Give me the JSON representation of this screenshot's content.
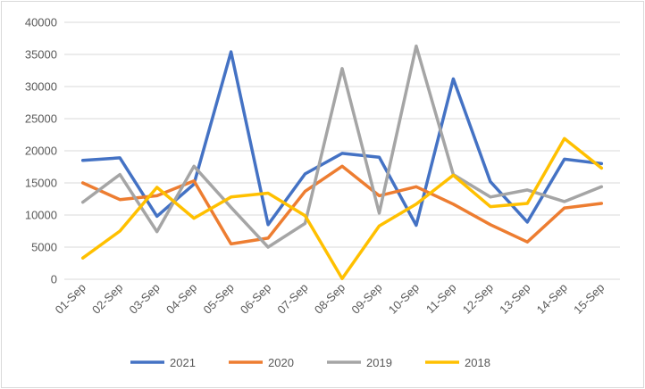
{
  "chart_data": {
    "type": "line",
    "title": "",
    "xlabel": "",
    "ylabel": "",
    "categories": [
      "01-Sep",
      "02-Sep",
      "03-Sep",
      "04-Sep",
      "05-Sep",
      "06-Sep",
      "07-Sep",
      "08-Sep",
      "09-Sep",
      "10-Sep",
      "11-Sep",
      "12-Sep",
      "13-Sep",
      "14-Sep",
      "15-Sep"
    ],
    "ylim": [
      0,
      40000
    ],
    "yticks": [
      "0",
      "5000",
      "10000",
      "15000",
      "20000",
      "25000",
      "30000",
      "35000",
      "40000"
    ],
    "grid": true,
    "legend_position": "bottom",
    "series": [
      {
        "name": "2021",
        "color": "#4472C4",
        "values": [
          18500,
          18900,
          9800,
          14800,
          35400,
          8500,
          16400,
          19600,
          19000,
          8400,
          31200,
          15200,
          8900,
          18700,
          18000
        ]
      },
      {
        "name": "2020",
        "color": "#ED7D31",
        "values": [
          15000,
          12400,
          13000,
          15300,
          5500,
          6400,
          13700,
          17600,
          13000,
          14400,
          11700,
          8500,
          5800,
          11100,
          11800
        ]
      },
      {
        "name": "2019",
        "color": "#A5A5A5",
        "values": [
          12000,
          16300,
          7400,
          17600,
          11200,
          5000,
          8700,
          32800,
          10300,
          36300,
          16300,
          12800,
          13900,
          12100,
          14400
        ]
      },
      {
        "name": "2018",
        "color": "#FFC000",
        "values": [
          3300,
          7500,
          14300,
          9500,
          12800,
          13400,
          9900,
          100,
          8300,
          11700,
          16200,
          11300,
          11800,
          21900,
          17300
        ]
      }
    ]
  }
}
